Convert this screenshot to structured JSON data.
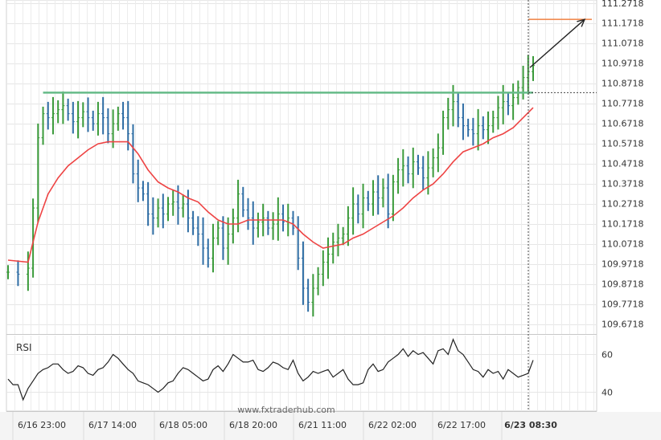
{
  "chart_data": {
    "type": "candlestick",
    "watermark": "www.fxtraderhub.com",
    "indicator_label": "RSI",
    "y_ticks": [
      "111.2718",
      "111.1718",
      "111.0718",
      "110.9718",
      "110.8718",
      "110.7718",
      "110.6718",
      "110.5718",
      "110.4718",
      "110.3718",
      "110.2718",
      "110.1718",
      "110.0718",
      "109.9718",
      "109.8718",
      "109.7718",
      "109.6718"
    ],
    "ylim": [
      109.6218,
      111.2868
    ],
    "x_ticks": [
      "6/16 23:00",
      "6/17 14:00",
      "6/18 05:00",
      "6/18 20:00",
      "6/21 11:00",
      "6/22 02:00",
      "6/22 17:00",
      "6/23 08:30"
    ],
    "x_ticks_highlighted": "6/23 08:30",
    "rsi_ticks": [
      "60",
      "40"
    ],
    "rsi_ylim": [
      30,
      70
    ],
    "resistance_level": 110.825,
    "target_level": 111.19,
    "price_close_points": [
      [
        0,
        109.93
      ],
      [
        2,
        109.92
      ],
      [
        4,
        109.95
      ],
      [
        5,
        110.25
      ],
      [
        6,
        110.6
      ],
      [
        7,
        110.72
      ],
      [
        8,
        110.7
      ],
      [
        9,
        110.72
      ],
      [
        10,
        110.74
      ],
      [
        11,
        110.76
      ],
      [
        12,
        110.72
      ],
      [
        13,
        110.68
      ],
      [
        14,
        110.7
      ],
      [
        15,
        110.73
      ],
      [
        16,
        110.7
      ],
      [
        17,
        110.67
      ],
      [
        18,
        110.72
      ],
      [
        19,
        110.7
      ],
      [
        20,
        110.62
      ],
      [
        21,
        110.67
      ],
      [
        22,
        110.72
      ],
      [
        23,
        110.7
      ],
      [
        24,
        110.62
      ],
      [
        25,
        110.42
      ],
      [
        26,
        110.35
      ],
      [
        27,
        110.32
      ],
      [
        28,
        110.22
      ],
      [
        29,
        110.2
      ],
      [
        30,
        110.25
      ],
      [
        31,
        110.22
      ],
      [
        32,
        110.27
      ],
      [
        33,
        110.28
      ],
      [
        34,
        110.25
      ],
      [
        35,
        110.27
      ],
      [
        36,
        110.2
      ],
      [
        37,
        110.15
      ],
      [
        38,
        110.12
      ],
      [
        39,
        110.05
      ],
      [
        40,
        110.0
      ],
      [
        41,
        110.1
      ],
      [
        42,
        110.15
      ],
      [
        43,
        110.05
      ],
      [
        44,
        110.12
      ],
      [
        45,
        110.2
      ],
      [
        46,
        110.32
      ],
      [
        47,
        110.24
      ],
      [
        48,
        110.2
      ],
      [
        49,
        110.15
      ],
      [
        50,
        110.18
      ],
      [
        51,
        110.2
      ],
      [
        52,
        110.15
      ],
      [
        53,
        110.17
      ],
      [
        54,
        110.22
      ],
      [
        55,
        110.18
      ],
      [
        56,
        110.2
      ],
      [
        57,
        110.15
      ],
      [
        58,
        110.0
      ],
      [
        59,
        109.85
      ],
      [
        60,
        109.78
      ],
      [
        61,
        109.85
      ],
      [
        62,
        109.92
      ],
      [
        63,
        109.98
      ],
      [
        64,
        110.02
      ],
      [
        65,
        110.08
      ],
      [
        66,
        110.1
      ],
      [
        67,
        110.12
      ],
      [
        68,
        110.2
      ],
      [
        69,
        110.27
      ],
      [
        70,
        110.22
      ],
      [
        71,
        110.3
      ],
      [
        72,
        110.27
      ],
      [
        73,
        110.33
      ],
      [
        74,
        110.3
      ],
      [
        75,
        110.35
      ],
      [
        76,
        110.22
      ],
      [
        77,
        110.38
      ],
      [
        78,
        110.44
      ],
      [
        79,
        110.46
      ],
      [
        80,
        110.42
      ],
      [
        81,
        110.48
      ],
      [
        82,
        110.45
      ],
      [
        83,
        110.4
      ],
      [
        84,
        110.45
      ],
      [
        85,
        110.5
      ],
      [
        86,
        110.55
      ],
      [
        87,
        110.7
      ],
      [
        88,
        110.74
      ],
      [
        89,
        110.78
      ],
      [
        90,
        110.7
      ],
      [
        91,
        110.66
      ],
      [
        92,
        110.64
      ],
      [
        93,
        110.62
      ],
      [
        94,
        110.66
      ],
      [
        95,
        110.64
      ],
      [
        96,
        110.66
      ],
      [
        97,
        110.7
      ],
      [
        98,
        110.75
      ],
      [
        99,
        110.78
      ],
      [
        100,
        110.76
      ],
      [
        101,
        110.8
      ],
      [
        102,
        110.85
      ],
      [
        103,
        110.9
      ],
      [
        104,
        110.93
      ],
      [
        105,
        110.96
      ]
    ],
    "moving_average": [
      [
        0,
        109.99
      ],
      [
        4,
        109.98
      ],
      [
        6,
        110.18
      ],
      [
        8,
        110.32
      ],
      [
        10,
        110.4
      ],
      [
        12,
        110.46
      ],
      [
        14,
        110.5
      ],
      [
        16,
        110.54
      ],
      [
        18,
        110.57
      ],
      [
        20,
        110.58
      ],
      [
        22,
        110.58
      ],
      [
        24,
        110.58
      ],
      [
        26,
        110.52
      ],
      [
        28,
        110.44
      ],
      [
        30,
        110.38
      ],
      [
        32,
        110.35
      ],
      [
        34,
        110.33
      ],
      [
        36,
        110.3
      ],
      [
        38,
        110.28
      ],
      [
        40,
        110.23
      ],
      [
        42,
        110.19
      ],
      [
        44,
        110.17
      ],
      [
        46,
        110.17
      ],
      [
        48,
        110.19
      ],
      [
        50,
        110.19
      ],
      [
        52,
        110.19
      ],
      [
        55,
        110.19
      ],
      [
        57,
        110.17
      ],
      [
        59,
        110.12
      ],
      [
        61,
        110.08
      ],
      [
        63,
        110.05
      ],
      [
        65,
        110.06
      ],
      [
        67,
        110.07
      ],
      [
        69,
        110.1
      ],
      [
        71,
        110.12
      ],
      [
        73,
        110.15
      ],
      [
        75,
        110.18
      ],
      [
        77,
        110.21
      ],
      [
        79,
        110.25
      ],
      [
        81,
        110.3
      ],
      [
        83,
        110.34
      ],
      [
        85,
        110.37
      ],
      [
        87,
        110.42
      ],
      [
        89,
        110.48
      ],
      [
        91,
        110.53
      ],
      [
        93,
        110.55
      ],
      [
        95,
        110.57
      ],
      [
        97,
        110.6
      ],
      [
        99,
        110.62
      ],
      [
        101,
        110.65
      ],
      [
        103,
        110.7
      ],
      [
        105,
        110.75
      ]
    ],
    "rsi_points": [
      [
        0,
        47
      ],
      [
        1,
        44
      ],
      [
        2,
        44
      ],
      [
        3,
        36
      ],
      [
        4,
        42
      ],
      [
        5,
        46
      ],
      [
        6,
        50
      ],
      [
        7,
        52
      ],
      [
        8,
        53
      ],
      [
        9,
        55
      ],
      [
        10,
        55
      ],
      [
        11,
        52
      ],
      [
        12,
        50
      ],
      [
        13,
        51
      ],
      [
        14,
        54
      ],
      [
        15,
        53
      ],
      [
        16,
        50
      ],
      [
        17,
        49
      ],
      [
        18,
        52
      ],
      [
        19,
        53
      ],
      [
        20,
        56
      ],
      [
        21,
        60
      ],
      [
        22,
        58
      ],
      [
        23,
        55
      ],
      [
        24,
        52
      ],
      [
        25,
        50
      ],
      [
        26,
        46
      ],
      [
        27,
        45
      ],
      [
        28,
        44
      ],
      [
        29,
        42
      ],
      [
        30,
        40
      ],
      [
        31,
        42
      ],
      [
        32,
        45
      ],
      [
        33,
        46
      ],
      [
        34,
        50
      ],
      [
        35,
        53
      ],
      [
        36,
        52
      ],
      [
        37,
        50
      ],
      [
        38,
        48
      ],
      [
        39,
        46
      ],
      [
        40,
        47
      ],
      [
        41,
        52
      ],
      [
        42,
        54
      ],
      [
        43,
        51
      ],
      [
        44,
        55
      ],
      [
        45,
        60
      ],
      [
        46,
        58
      ],
      [
        47,
        56
      ],
      [
        48,
        56
      ],
      [
        49,
        57
      ],
      [
        50,
        52
      ],
      [
        51,
        51
      ],
      [
        52,
        53
      ],
      [
        53,
        56
      ],
      [
        54,
        55
      ],
      [
        55,
        53
      ],
      [
        56,
        52
      ],
      [
        57,
        57
      ],
      [
        58,
        50
      ],
      [
        59,
        46
      ],
      [
        60,
        48
      ],
      [
        61,
        51
      ],
      [
        62,
        50
      ],
      [
        63,
        51
      ],
      [
        64,
        52
      ],
      [
        65,
        48
      ],
      [
        66,
        50
      ],
      [
        67,
        52
      ],
      [
        68,
        47
      ],
      [
        69,
        44
      ],
      [
        70,
        44
      ],
      [
        71,
        45
      ],
      [
        72,
        52
      ],
      [
        73,
        55
      ],
      [
        74,
        51
      ],
      [
        75,
        52
      ],
      [
        76,
        56
      ],
      [
        77,
        58
      ],
      [
        78,
        60
      ],
      [
        79,
        63
      ],
      [
        80,
        59
      ],
      [
        81,
        62
      ],
      [
        82,
        60
      ],
      [
        83,
        61
      ],
      [
        84,
        58
      ],
      [
        85,
        55
      ],
      [
        86,
        62
      ],
      [
        87,
        63
      ],
      [
        88,
        60
      ],
      [
        89,
        68
      ],
      [
        90,
        62
      ],
      [
        91,
        60
      ],
      [
        92,
        56
      ],
      [
        93,
        52
      ],
      [
        94,
        51
      ],
      [
        95,
        48
      ],
      [
        96,
        52
      ],
      [
        97,
        50
      ],
      [
        98,
        51
      ],
      [
        99,
        47
      ],
      [
        100,
        52
      ],
      [
        101,
        50
      ],
      [
        102,
        48
      ],
      [
        103,
        49
      ],
      [
        104,
        50
      ],
      [
        105,
        57
      ]
    ]
  }
}
